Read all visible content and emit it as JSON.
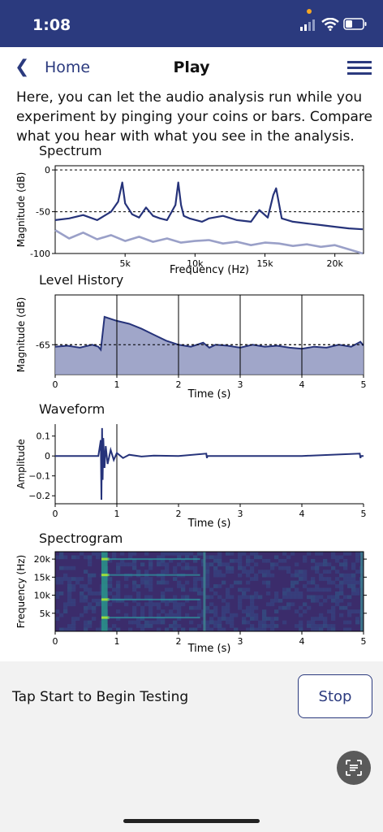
{
  "status_bar": {
    "time": "1:08"
  },
  "nav": {
    "back_label": "Home",
    "title": "Play"
  },
  "intro_text": "Here, you can let the audio analysis run while you experiment by pinging your coins or bars. Compare what you hear with what you see in the analysis.",
  "controls": {
    "prompt": "Tap Start to Begin Testing",
    "stop_label": "Stop"
  },
  "icons": {
    "back": "chevron-left-icon",
    "menu": "hamburger-menu-icon",
    "signal": "cellular-signal-icon",
    "wifi": "wifi-icon",
    "battery": "battery-icon",
    "scan": "text-scan-icon"
  },
  "colors": {
    "nav_bar": "#2b3a7e",
    "accent": "#2b3a7e",
    "series_primary": "#26337a",
    "series_secondary": "#9aa0c8"
  },
  "chart_data": [
    {
      "type": "line",
      "title": "Spectrum",
      "xlabel": "Frequency (Hz)",
      "ylabel": "Magnitude (dB)",
      "xlim": [
        0,
        22050
      ],
      "ylim": [
        -100,
        5
      ],
      "xticks": [
        5000,
        10000,
        15000,
        20000
      ],
      "xtick_labels": [
        "5k",
        "10k",
        "15k",
        "20k"
      ],
      "yticks": [
        0,
        -50,
        -100
      ],
      "ytick_labels": [
        "0",
        "-50",
        "-100"
      ],
      "reference_lines": [
        0,
        -50
      ],
      "series": [
        {
          "x": [
            0,
            1000,
            2000,
            3000,
            4000,
            4500,
            4800,
            5000,
            5500,
            6000,
            6500,
            7000,
            7500,
            8000,
            8600,
            8800,
            9000,
            9200,
            9600,
            10500,
            11000,
            12000,
            13000,
            14000,
            14300,
            14600,
            15200,
            15600,
            15800,
            16200,
            17000,
            18000,
            19000,
            20000,
            21000,
            22000
          ],
          "y": [
            -60,
            -58,
            -54,
            -60,
            -50,
            -38,
            -15,
            -40,
            -53,
            -57,
            -45,
            -55,
            -58,
            -60,
            -42,
            -15,
            -42,
            -55,
            -58,
            -62,
            -58,
            -55,
            -60,
            -62,
            -55,
            -48,
            -57,
            -30,
            -22,
            -58,
            -62,
            -64,
            -66,
            -68,
            -70,
            -71
          ]
        },
        {
          "x": [
            0,
            1000,
            2000,
            3000,
            4000,
            5000,
            6000,
            7000,
            8000,
            9000,
            10000,
            11000,
            12000,
            13000,
            14000,
            15000,
            16000,
            17000,
            18000,
            19000,
            20000,
            21000,
            22000
          ],
          "y": [
            -72,
            -82,
            -75,
            -83,
            -78,
            -85,
            -80,
            -86,
            -82,
            -87,
            -85,
            -84,
            -88,
            -86,
            -90,
            -87,
            -88,
            -91,
            -89,
            -92,
            -90,
            -95,
            -100
          ]
        }
      ]
    },
    {
      "type": "area",
      "title": "Level History",
      "xlabel": "Time (s)",
      "ylabel": "Magnitude (dB)",
      "xlim": [
        0,
        5
      ],
      "ylim": [
        -68,
        -60
      ],
      "xticks": [
        0,
        1,
        2,
        3,
        4,
        5
      ],
      "yticks": [
        -65
      ],
      "ytick_labels": [
        "-65"
      ],
      "reference_lines": [
        -65
      ],
      "series": [
        {
          "x": [
            0,
            0.2,
            0.4,
            0.6,
            0.7,
            0.74,
            0.8,
            1.0,
            1.2,
            1.4,
            1.6,
            1.8,
            2.0,
            2.2,
            2.4,
            2.5,
            2.6,
            2.8,
            3.0,
            3.2,
            3.4,
            3.6,
            3.8,
            4.0,
            4.2,
            4.4,
            4.6,
            4.8,
            4.95,
            5.0
          ],
          "y": [
            -65.2,
            -65.1,
            -65.3,
            -65.0,
            -65.2,
            -65.5,
            -62.2,
            -62.6,
            -62.9,
            -63.4,
            -64.0,
            -64.6,
            -65.0,
            -65.2,
            -64.8,
            -65.3,
            -65.0,
            -65.1,
            -65.3,
            -65.0,
            -65.2,
            -65.1,
            -65.3,
            -65.4,
            -65.2,
            -65.3,
            -65.0,
            -65.2,
            -64.7,
            -65.1
          ]
        }
      ]
    },
    {
      "type": "line",
      "title": "Waveform",
      "xlabel": "Time (s)",
      "ylabel": "Amplitude",
      "xlim": [
        0,
        5
      ],
      "ylim": [
        -0.24,
        0.16
      ],
      "xticks": [
        0,
        1,
        2,
        3,
        4,
        5
      ],
      "yticks": [
        0.1,
        0,
        -0.1,
        -0.2
      ],
      "ytick_labels": [
        "0.1",
        "0",
        "−0.1",
        "−0.2"
      ],
      "series": [
        {
          "x": [
            0,
            0.7,
            0.74,
            0.75,
            0.76,
            0.77,
            0.78,
            0.8,
            0.82,
            0.85,
            0.9,
            0.95,
            1.0,
            1.1,
            1.2,
            1.4,
            1.6,
            2.0,
            2.45,
            2.46,
            2.47,
            3.0,
            4.0,
            4.94,
            4.95,
            4.96,
            5.0
          ],
          "y": [
            0,
            0,
            0.08,
            -0.22,
            0.14,
            -0.12,
            0.09,
            -0.06,
            0.05,
            -0.04,
            0.03,
            -0.02,
            0.015,
            -0.01,
            0.006,
            -0.003,
            0.002,
            0,
            0.012,
            -0.01,
            0,
            0,
            0,
            0.012,
            -0.01,
            0,
            0
          ]
        }
      ]
    },
    {
      "type": "heatmap",
      "title": "Spectrogram",
      "xlabel": "Time (s)",
      "ylabel": "Frequency (Hz)",
      "xlim": [
        0,
        5
      ],
      "ylim": [
        0,
        22050
      ],
      "xticks": [
        0,
        1,
        2,
        3,
        4,
        5
      ],
      "yticks": [
        5000,
        10000,
        15000,
        20000
      ],
      "ytick_labels": [
        "5k",
        "10k",
        "15k",
        "20k"
      ],
      "events": [
        {
          "t": 0.75,
          "duration": 0.1,
          "intensity": 1.0,
          "harmonics_hz": [
            3800,
            8800,
            15600,
            20000
          ]
        },
        {
          "t": 2.4,
          "duration": 0.04,
          "intensity": 0.55,
          "harmonics_hz": []
        },
        {
          "t": 4.95,
          "duration": 0.04,
          "intensity": 0.55,
          "harmonics_hz": []
        }
      ]
    }
  ]
}
